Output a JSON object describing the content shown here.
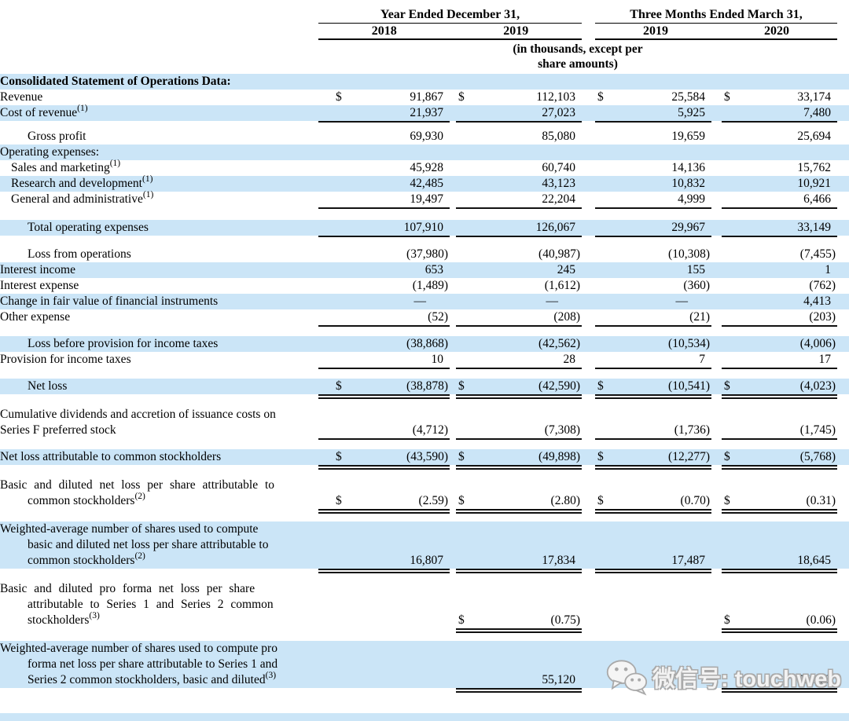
{
  "header": {
    "group1": {
      "title": "Year Ended December 31,",
      "cols": [
        "2018",
        "2019"
      ]
    },
    "group2": {
      "title": "Three Months Ended March 31,",
      "cols": [
        "2019",
        "2020"
      ]
    },
    "note_line1": "(in thousands, except per",
    "note_line2": "share amounts)"
  },
  "rows": [
    {
      "lines": [
        "Consolidated Statement of Operations Data:"
      ],
      "bold": true,
      "shade": true
    },
    {
      "lines": [
        "Revenue"
      ],
      "dollar": true,
      "values": [
        "91,867",
        "112,103",
        "25,584",
        "33,174"
      ]
    },
    {
      "lines": [
        "Cost of revenue"
      ],
      "sup": "(1)",
      "shade": true,
      "values": [
        "21,937",
        "27,023",
        "5,925",
        "7,480"
      ],
      "rule": "s"
    },
    {
      "lines": [
        "Gross profit"
      ],
      "indent": 2,
      "values": [
        "69,930",
        "85,080",
        "19,659",
        "25,694"
      ]
    },
    {
      "lines": [
        "Operating expenses:"
      ],
      "shade": true
    },
    {
      "lines": [
        "Sales and marketing"
      ],
      "sup": "(1)",
      "indent": 1,
      "values": [
        "45,928",
        "60,740",
        "14,136",
        "15,762"
      ]
    },
    {
      "lines": [
        "Research and development"
      ],
      "sup": "(1)",
      "indent": 1,
      "shade": true,
      "values": [
        "42,485",
        "43,123",
        "10,832",
        "10,921"
      ]
    },
    {
      "lines": [
        "General and administrative"
      ],
      "sup": "(1)",
      "indent": 1,
      "values": [
        "19,497",
        "22,204",
        "4,999",
        "6,466"
      ],
      "rule": "s"
    },
    {
      "gap": 6
    },
    {
      "lines": [
        "Total operating expenses"
      ],
      "indent": 2,
      "shade": true,
      "values": [
        "107,910",
        "126,067",
        "29,967",
        "33,149"
      ],
      "rule": "s"
    },
    {
      "gap": 4
    },
    {
      "lines": [
        "Loss from operations"
      ],
      "indent": 2,
      "values": [
        "(37,980)",
        "(40,987)",
        "(10,308)",
        "(7,455)"
      ]
    },
    {
      "lines": [
        "Interest income"
      ],
      "shade": true,
      "values": [
        "653",
        "245",
        "155",
        "1"
      ]
    },
    {
      "lines": [
        "Interest expense"
      ],
      "values": [
        "(1,489)",
        "(1,612)",
        "(360)",
        "(762)"
      ]
    },
    {
      "lines": [
        "Change in fair value of financial instruments"
      ],
      "shade": true,
      "values": [
        "—",
        "—",
        "—",
        "4,413"
      ]
    },
    {
      "lines": [
        "Other expense"
      ],
      "values": [
        "(52)",
        "(208)",
        "(21)",
        "(203)"
      ],
      "rule": "s"
    },
    {
      "gap": 4
    },
    {
      "lines": [
        "Loss before provision for income taxes"
      ],
      "indent": 2,
      "shade": true,
      "values": [
        "(38,868)",
        "(42,562)",
        "(10,534)",
        "(4,006)"
      ]
    },
    {
      "lines": [
        "Provision for income taxes"
      ],
      "values": [
        "10",
        "28",
        "7",
        "17"
      ],
      "rule": "s"
    },
    {
      "gap": 4
    },
    {
      "lines": [
        "Net loss"
      ],
      "indent": 2,
      "shade": true,
      "dollar": true,
      "values": [
        "(38,878)",
        "(42,590)",
        "(10,541)",
        "(4,023)"
      ],
      "rule": "d"
    },
    {
      "gap": 6
    },
    {
      "lines": [
        "Cumulative dividends and accretion of issuance costs on",
        "Series F preferred stock"
      ],
      "values": [
        "(4,712)",
        "(7,308)",
        "(1,736)",
        "(1,745)"
      ],
      "rule": "s"
    },
    {
      "gap": 4
    },
    {
      "lines": [
        "Net loss attributable to common stockholders"
      ],
      "shade": true,
      "dollar": true,
      "values": [
        "(43,590)",
        "(49,898)",
        "(12,277)",
        "(5,768)"
      ],
      "rule": "d"
    },
    {
      "gap": 6
    },
    {
      "lines": [
        "Basic and diluted net loss per share attributable to",
        "common stockholders"
      ],
      "sup": "(2)",
      "hang": true,
      "justify": true,
      "dollar": true,
      "values": [
        "(2.59)",
        "(2.80)",
        "(0.70)",
        "(0.31)"
      ],
      "rule": "d"
    },
    {
      "gap": 6
    },
    {
      "lines": [
        "Weighted-average number of shares used to compute",
        "basic and diluted net loss per share attributable to",
        "common stockholders"
      ],
      "sup": "(2)",
      "hang": true,
      "shade": true,
      "values": [
        "16,807",
        "17,834",
        "17,487",
        "18,645"
      ],
      "rule": "d"
    },
    {
      "gap": 6
    },
    {
      "lines": [
        "Basic and diluted pro forma net loss per share",
        "attributable to Series 1 and Series 2 common",
        "stockholders"
      ],
      "sup": "(3)",
      "hang": true,
      "justify": true,
      "dollar": true,
      "values": [
        "",
        "(0.75)",
        "",
        "(0.06)"
      ],
      "rule": "d",
      "ruleCols": [
        1,
        3
      ]
    },
    {
      "gap": 6
    },
    {
      "lines": [
        "Weighted-average number of shares used to compute pro",
        "forma net loss per share attributable to Series 1 and",
        "Series 2 common stockholders, basic and diluted"
      ],
      "sup": "(3)",
      "hang": true,
      "shade": true,
      "values": [
        "",
        "55,120",
        "",
        "57,128"
      ],
      "rule": "d",
      "ruleCols": [
        1,
        3
      ]
    }
  ],
  "watermark": {
    "label": "微信号: touchweb",
    "icon": "wechat-icon"
  },
  "colors": {
    "stripe": "#cbe5f7",
    "text": "#000000",
    "rule": "#111111"
  }
}
